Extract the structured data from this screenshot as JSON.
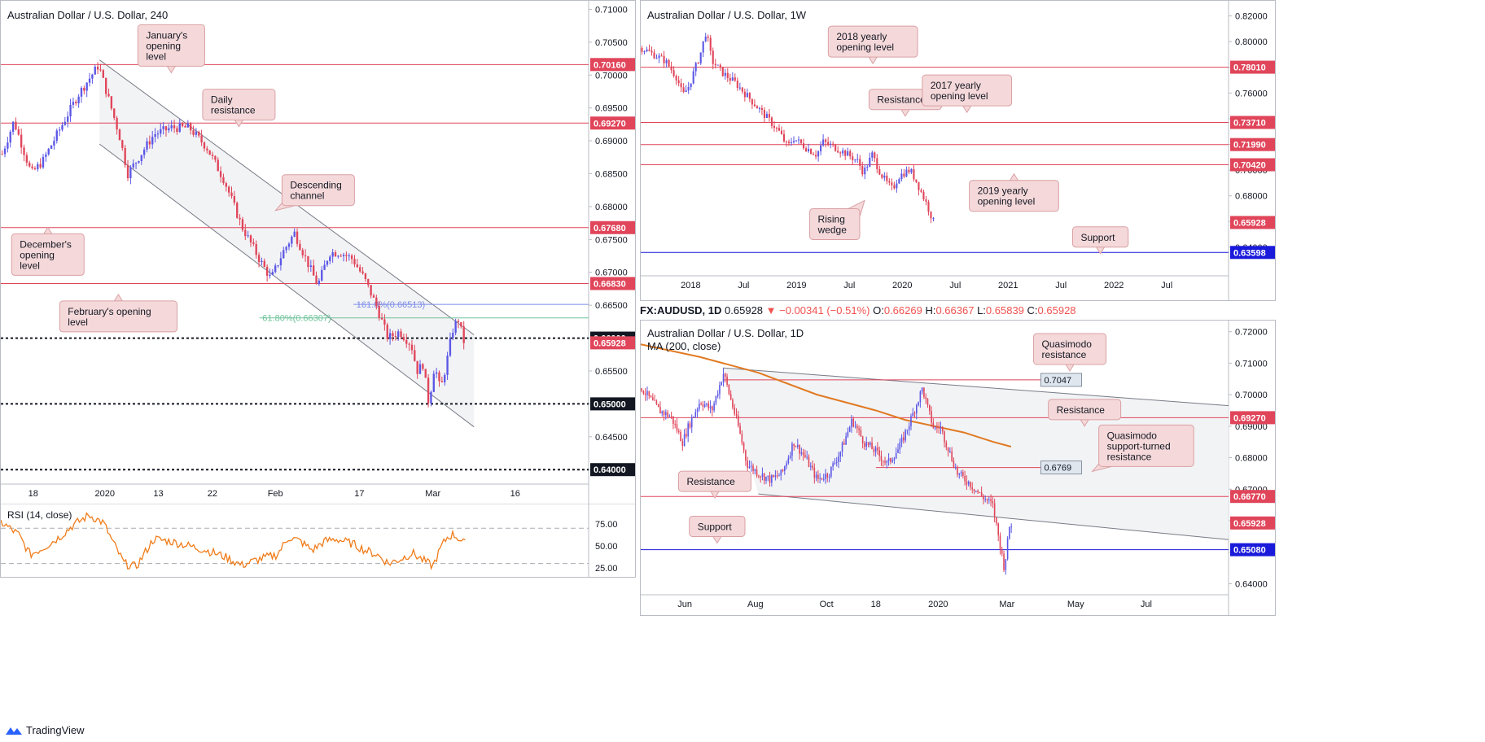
{
  "footer": {
    "brand": "TradingView"
  },
  "info_bar": {
    "symbol": "FX:AUDUSD, 1D",
    "last": "0.65928",
    "change": "▼ −0.00341 (−0.51%)",
    "o_label": "O:",
    "o": "0.66269",
    "h_label": "H:",
    "h": "0.66367",
    "l_label": "L:",
    "l": "0.65839",
    "c_label": "C:",
    "c": "0.65928"
  },
  "colors": {
    "bull": "#5b57e6",
    "bear": "#e0455a",
    "red_line": "#e0455a",
    "blue_line": "#1a1adb",
    "rsi": "#f07c1a",
    "ma": "#e07a22",
    "callout_fill": "#f5d9da",
    "callout_border": "#d9a0a4"
  },
  "chart_data": [
    {
      "id": "h4",
      "type": "candlestick",
      "title": "Australian Dollar / U.S. Dollar, 240",
      "ylim": [
        0.6378,
        0.7103
      ],
      "y_ticks": [
        "0.71000",
        "0.70500",
        "0.70000",
        "0.69500",
        "0.69000",
        "0.68500",
        "0.68000",
        "0.67500",
        "0.67000",
        "0.66500",
        "0.66000",
        "0.65500",
        "0.65000",
        "0.64500",
        "0.64000"
      ],
      "x_ticks": [
        "18",
        "2020",
        "13",
        "22",
        "Feb",
        "17",
        "Mar",
        "16"
      ],
      "x_tick_pos": [
        0.055,
        0.177,
        0.268,
        0.36,
        0.467,
        0.61,
        0.735,
        0.875
      ],
      "path": [
        [
          0.0,
          0.688
        ],
        [
          0.02,
          0.693
        ],
        [
          0.05,
          0.685
        ],
        [
          0.07,
          0.687
        ],
        [
          0.1,
          0.692
        ],
        [
          0.13,
          0.697
        ],
        [
          0.165,
          0.7015
        ],
        [
          0.18,
          0.697
        ],
        [
          0.2,
          0.691
        ],
        [
          0.215,
          0.685
        ],
        [
          0.23,
          0.687
        ],
        [
          0.26,
          0.691
        ],
        [
          0.29,
          0.692
        ],
        [
          0.32,
          0.692
        ],
        [
          0.35,
          0.689
        ],
        [
          0.38,
          0.684
        ],
        [
          0.41,
          0.677
        ],
        [
          0.44,
          0.672
        ],
        [
          0.46,
          0.669
        ],
        [
          0.48,
          0.673
        ],
        [
          0.5,
          0.676
        ],
        [
          0.52,
          0.672
        ],
        [
          0.54,
          0.668
        ],
        [
          0.56,
          0.673
        ],
        [
          0.58,
          0.673
        ],
        [
          0.6,
          0.672
        ],
        [
          0.62,
          0.669
        ],
        [
          0.64,
          0.665
        ],
        [
          0.66,
          0.66
        ],
        [
          0.68,
          0.661
        ],
        [
          0.7,
          0.659
        ],
        [
          0.71,
          0.655
        ],
        [
          0.72,
          0.656
        ],
        [
          0.73,
          0.65
        ],
        [
          0.74,
          0.656
        ],
        [
          0.75,
          0.652
        ],
        [
          0.76,
          0.656
        ],
        [
          0.77,
          0.661
        ],
        [
          0.78,
          0.663
        ],
        [
          0.79,
          0.6595
        ]
      ],
      "horizontal_levels": [
        {
          "label": "0.70160",
          "value": 0.7016,
          "style": "red",
          "badge": "red"
        },
        {
          "label": "0.69270",
          "value": 0.6927,
          "style": "red",
          "badge": "red"
        },
        {
          "label": "0.67680",
          "value": 0.6768,
          "style": "red",
          "badge": "red"
        },
        {
          "label": "0.66830",
          "value": 0.6683,
          "style": "red",
          "badge": "red"
        },
        {
          "label": "0.66000",
          "value": 0.66,
          "style": "dotted",
          "badge": "black"
        },
        {
          "label": "0.65000",
          "value": 0.65,
          "style": "dotted",
          "badge": "black"
        },
        {
          "label": "0.64000",
          "value": 0.64,
          "style": "dotted",
          "badge": "black"
        }
      ],
      "price_badge": {
        "label": "0.65928",
        "value": 0.65928
      },
      "fib_levels": [
        {
          "label": "161.8%(0.66513)",
          "value": 0.66513,
          "color": "#7b8be8",
          "x_start": 0.6,
          "label_x": 0.605
        },
        {
          "label": "61.80%(0.66307)",
          "value": 0.66307,
          "color": "#6fc39a",
          "x_start": 0.44,
          "label_x": 0.445
        }
      ],
      "channel": {
        "upper": [
          [
            0.168,
            0.7023
          ],
          [
            0.805,
            0.6605
          ]
        ],
        "lower": [
          [
            0.168,
            0.6895
          ],
          [
            0.805,
            0.6465
          ]
        ]
      },
      "annotations": [
        {
          "text": "January's\nopening\nlevel",
          "x": 0.29,
          "value": 0.7045,
          "pointer": "down"
        },
        {
          "text": "Daily\nresistance",
          "x": 0.405,
          "value": 0.6955,
          "pointer": "down"
        },
        {
          "text": "Descending\nchannel",
          "x": 0.54,
          "value": 0.6825,
          "pointer": "down-left"
        },
        {
          "text": "December's\nopening\nlevel",
          "x": 0.08,
          "value": 0.6727,
          "pointer": "up"
        },
        {
          "text": "February's opening\nlevel",
          "x": 0.2,
          "value": 0.6633,
          "pointer": "up"
        }
      ],
      "rsi": {
        "label": "RSI (14, close)",
        "ylim": [
          13,
          98
        ],
        "levels": [
          70,
          30
        ],
        "y_ticks": [
          "75.00",
          "50.00",
          "25.00"
        ],
        "y_tick_values": [
          75,
          50,
          25
        ],
        "path": [
          [
            0.0,
            77
          ],
          [
            0.03,
            63
          ],
          [
            0.05,
            40
          ],
          [
            0.07,
            47
          ],
          [
            0.1,
            60
          ],
          [
            0.12,
            72
          ],
          [
            0.15,
            85
          ],
          [
            0.175,
            76
          ],
          [
            0.19,
            55
          ],
          [
            0.21,
            30
          ],
          [
            0.23,
            26
          ],
          [
            0.26,
            58
          ],
          [
            0.29,
            55
          ],
          [
            0.32,
            50
          ],
          [
            0.35,
            45
          ],
          [
            0.38,
            38
          ],
          [
            0.41,
            28
          ],
          [
            0.44,
            35
          ],
          [
            0.47,
            40
          ],
          [
            0.49,
            60
          ],
          [
            0.51,
            55
          ],
          [
            0.53,
            45
          ],
          [
            0.55,
            55
          ],
          [
            0.57,
            58
          ],
          [
            0.6,
            52
          ],
          [
            0.62,
            45
          ],
          [
            0.64,
            40
          ],
          [
            0.66,
            30
          ],
          [
            0.68,
            35
          ],
          [
            0.7,
            42
          ],
          [
            0.72,
            33
          ],
          [
            0.735,
            27
          ],
          [
            0.75,
            50
          ],
          [
            0.76,
            60
          ],
          [
            0.77,
            63
          ],
          [
            0.78,
            58
          ],
          [
            0.79,
            52
          ]
        ]
      }
    },
    {
      "id": "weekly",
      "type": "candlestick",
      "title": "Australian Dollar / U.S. Dollar, 1W",
      "ylim": [
        0.6178,
        0.8292
      ],
      "y_ticks": [
        "0.82000",
        "0.80000",
        "0.78000",
        "0.76000",
        "0.74000",
        "0.72000",
        "0.70000",
        "0.68000",
        "0.66000",
        "0.64000"
      ],
      "x_ticks": [
        "2018",
        "Jul",
        "2019",
        "Jul",
        "2020",
        "Jul",
        "2021",
        "Jul",
        "2022",
        "Jul"
      ],
      "x_tick_pos": [
        0.085,
        0.175,
        0.265,
        0.355,
        0.445,
        0.535,
        0.625,
        0.715,
        0.805,
        0.895
      ],
      "path": [
        [
          0.0,
          0.795
        ],
        [
          0.02,
          0.79
        ],
        [
          0.04,
          0.785
        ],
        [
          0.06,
          0.772
        ],
        [
          0.07,
          0.758
        ],
        [
          0.08,
          0.765
        ],
        [
          0.1,
          0.79
        ],
        [
          0.11,
          0.808
        ],
        [
          0.12,
          0.785
        ],
        [
          0.14,
          0.775
        ],
        [
          0.16,
          0.768
        ],
        [
          0.18,
          0.758
        ],
        [
          0.2,
          0.748
        ],
        [
          0.22,
          0.738
        ],
        [
          0.235,
          0.73
        ],
        [
          0.25,
          0.718
        ],
        [
          0.26,
          0.725
        ],
        [
          0.28,
          0.718
        ],
        [
          0.3,
          0.712
        ],
        [
          0.31,
          0.722
        ],
        [
          0.33,
          0.718
        ],
        [
          0.35,
          0.713
        ],
        [
          0.37,
          0.707
        ],
        [
          0.38,
          0.698
        ],
        [
          0.395,
          0.712
        ],
        [
          0.41,
          0.697
        ],
        [
          0.42,
          0.69
        ],
        [
          0.43,
          0.685
        ],
        [
          0.44,
          0.695
        ],
        [
          0.45,
          0.698
        ],
        [
          0.46,
          0.7
        ],
        [
          0.47,
          0.692
        ],
        [
          0.48,
          0.682
        ],
        [
          0.49,
          0.672
        ],
        [
          0.5,
          0.66
        ]
      ],
      "horizontal_levels": [
        {
          "label": "0.78010",
          "value": 0.7801,
          "style": "red",
          "badge": "red"
        },
        {
          "label": "0.73710",
          "value": 0.7371,
          "style": "red",
          "badge": "red"
        },
        {
          "label": "0.71990",
          "value": 0.7199,
          "style": "red",
          "badge": "red"
        },
        {
          "label": "0.70420",
          "value": 0.7042,
          "style": "red",
          "badge": "red"
        },
        {
          "label": "0.63598",
          "value": 0.63598,
          "style": "blue",
          "badge": "blue"
        }
      ],
      "price_badge": {
        "label": "0.65928",
        "value": 0.65928
      },
      "annotations": [
        {
          "text": "2018 yearly\nopening level",
          "x": 0.395,
          "value": 0.8,
          "pointer": "down"
        },
        {
          "text": "Resistance",
          "x": 0.45,
          "value": 0.755,
          "pointer": "down"
        },
        {
          "text": "2017 yearly\nopening level",
          "x": 0.555,
          "value": 0.762,
          "pointer": "down"
        },
        {
          "text": "2019 yearly\nopening level",
          "x": 0.635,
          "value": 0.68,
          "pointer": "up"
        },
        {
          "text": "Rising\nwedge",
          "x": 0.33,
          "value": 0.658,
          "pointer": "up-right"
        },
        {
          "text": "Support",
          "x": 0.782,
          "value": 0.648,
          "pointer": "down"
        }
      ]
    },
    {
      "id": "daily",
      "type": "candlestick",
      "title": "Australian Dollar / U.S. Dollar, 1D",
      "indicator": "MA (200, close)",
      "ylim": [
        0.6365,
        0.7225
      ],
      "y_ticks": [
        "0.72000",
        "0.71000",
        "0.70000",
        "0.69000",
        "0.68000",
        "0.67000",
        "0.66000",
        "0.65000",
        "0.64000"
      ],
      "x_ticks": [
        "Jun",
        "Aug",
        "Oct",
        "18",
        "2020",
        "Mar",
        "May",
        "Jul"
      ],
      "x_tick_pos": [
        0.075,
        0.195,
        0.316,
        0.4,
        0.506,
        0.623,
        0.74,
        0.86
      ],
      "path": [
        [
          0.0,
          0.702
        ],
        [
          0.03,
          0.695
        ],
        [
          0.05,
          0.693
        ],
        [
          0.07,
          0.685
        ],
        [
          0.08,
          0.69
        ],
        [
          0.1,
          0.698
        ],
        [
          0.12,
          0.695
        ],
        [
          0.14,
          0.707
        ],
        [
          0.15,
          0.7
        ],
        [
          0.165,
          0.69
        ],
        [
          0.18,
          0.678
        ],
        [
          0.2,
          0.675
        ],
        [
          0.22,
          0.673
        ],
        [
          0.24,
          0.675
        ],
        [
          0.26,
          0.685
        ],
        [
          0.28,
          0.68
        ],
        [
          0.3,
          0.673
        ],
        [
          0.32,
          0.675
        ],
        [
          0.34,
          0.682
        ],
        [
          0.36,
          0.692
        ],
        [
          0.38,
          0.685
        ],
        [
          0.4,
          0.682
        ],
        [
          0.42,
          0.678
        ],
        [
          0.44,
          0.683
        ],
        [
          0.46,
          0.692
        ],
        [
          0.48,
          0.702
        ],
        [
          0.49,
          0.695
        ],
        [
          0.5,
          0.689
        ],
        [
          0.51,
          0.69
        ],
        [
          0.52,
          0.685
        ],
        [
          0.54,
          0.675
        ],
        [
          0.56,
          0.672
        ],
        [
          0.58,
          0.668
        ],
        [
          0.6,
          0.665
        ],
        [
          0.61,
          0.655
        ],
        [
          0.62,
          0.645
        ],
        [
          0.625,
          0.652
        ],
        [
          0.63,
          0.66
        ],
        [
          0.632,
          0.659
        ]
      ],
      "ma_path": [
        [
          0.0,
          0.716
        ],
        [
          0.1,
          0.712
        ],
        [
          0.2,
          0.707
        ],
        [
          0.3,
          0.7
        ],
        [
          0.4,
          0.695
        ],
        [
          0.45,
          0.692
        ],
        [
          0.5,
          0.69
        ],
        [
          0.55,
          0.688
        ],
        [
          0.6,
          0.685
        ],
        [
          0.63,
          0.6835
        ]
      ],
      "horizontal_levels": [
        {
          "label": "0.69270",
          "value": 0.6927,
          "style": "red",
          "badge": "red",
          "x_start": 0.0
        },
        {
          "label": "0.66770",
          "value": 0.6677,
          "style": "red",
          "badge": "red",
          "x_start": 0.0
        },
        {
          "label": "0.65080",
          "value": 0.6508,
          "style": "blue",
          "badge": "blue",
          "x_start": 0.0
        },
        {
          "label": "0.7047",
          "value": 0.7047,
          "style": "red",
          "badge": "box",
          "x_start": 0.14,
          "x_end": 0.75
        },
        {
          "label": "0.6769",
          "value": 0.6769,
          "style": "red",
          "badge": "box",
          "x_start": 0.4,
          "x_end": 0.75
        }
      ],
      "price_badge": {
        "label": "0.65928",
        "value": 0.65928
      },
      "channel": {
        "upper": [
          [
            0.14,
            0.7085
          ],
          [
            1.0,
            0.6965
          ]
        ],
        "lower": [
          [
            0.2,
            0.6685
          ],
          [
            1.0,
            0.654
          ]
        ]
      },
      "annotations": [
        {
          "text": "Quasimodo\nresistance",
          "x": 0.73,
          "value": 0.7145,
          "pointer": "down"
        },
        {
          "text": "Resistance",
          "x": 0.755,
          "value": 0.6953,
          "pointer": "down"
        },
        {
          "text": "Quasimodo\nsupport-turned\nresistance",
          "x": 0.86,
          "value": 0.6838,
          "pointer": "down-left"
        },
        {
          "text": "Resistance",
          "x": 0.126,
          "value": 0.6725,
          "pointer": "down"
        },
        {
          "text": "Support",
          "x": 0.13,
          "value": 0.6582,
          "pointer": "down"
        }
      ]
    }
  ]
}
